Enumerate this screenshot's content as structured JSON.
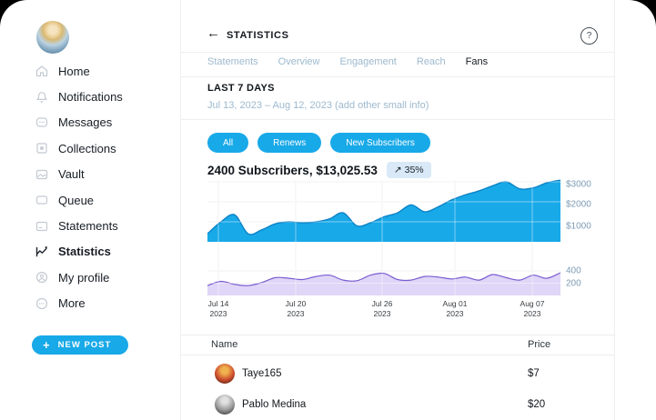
{
  "colors": {
    "accent": "#18a9e8",
    "card-bg": "#ffffff",
    "muted-blue": "#9db9cd",
    "axis-blue": "#7e9cb6",
    "badge-bg": "#d9e9f7",
    "chart-blue-fill": "#18a9e8",
    "chart-blue-stroke": "#0c83c7",
    "chart-purple-stroke": "#7a5cd0",
    "chart-purple-fill": "#e0d6f7"
  },
  "sidebar": {
    "items": [
      {
        "label": "Home",
        "icon": "home",
        "active": false
      },
      {
        "label": "Notifications",
        "icon": "bell",
        "active": false
      },
      {
        "label": "Messages",
        "icon": "message",
        "active": false
      },
      {
        "label": "Collections",
        "icon": "collections",
        "active": false
      },
      {
        "label": "Vault",
        "icon": "vault",
        "active": false
      },
      {
        "label": "Queue",
        "icon": "queue",
        "active": false
      },
      {
        "label": "Statements",
        "icon": "statements",
        "active": false
      },
      {
        "label": "Statistics",
        "icon": "statistics",
        "active": true
      },
      {
        "label": "My profile",
        "icon": "profile",
        "active": false
      },
      {
        "label": "More",
        "icon": "more",
        "active": false
      }
    ],
    "new_post_label": "NEW POST",
    "plus_glyph": "+"
  },
  "header": {
    "title": "STATISTICS",
    "back_glyph": "←",
    "help_glyph": "?"
  },
  "tabs": [
    {
      "label": "Statements",
      "active": false
    },
    {
      "label": "Overview",
      "active": false
    },
    {
      "label": "Engagement",
      "active": false
    },
    {
      "label": "Reach",
      "active": false
    },
    {
      "label": "Fans",
      "active": true
    }
  ],
  "period": {
    "title": "LAST 7 DAYS",
    "subtitle": "Jul 13, 2023 – Aug 12, 2023 (add other small info)"
  },
  "filters": [
    "All",
    "Renews",
    "New Subscribers"
  ],
  "summary": {
    "headline": "2400 Subscribers, $13,025.53",
    "arrow_glyph": "↗",
    "change": "35%"
  },
  "chart_data": {
    "type": "area",
    "x_ticks": [
      {
        "label": "Jul 14",
        "year": "2023"
      },
      {
        "label": "Jul 20",
        "year": "2023"
      },
      {
        "label": "Jul 26",
        "year": "2023"
      },
      {
        "label": "Aug 01",
        "year": "2023"
      },
      {
        "label": "Aug 07",
        "year": "2023"
      }
    ],
    "series": [
      {
        "name": "earnings-usd",
        "axis_labels": [
          "$3000",
          "$2000",
          "$1000"
        ],
        "axis_max": 3000,
        "values": [
          400,
          1000,
          1350,
          400,
          600,
          900,
          1000,
          950,
          1000,
          1150,
          1450,
          800,
          950,
          1250,
          1450,
          1850,
          1500,
          1750,
          2100,
          2350,
          2550,
          2800,
          3000,
          2650,
          2700,
          2950,
          3080
        ]
      },
      {
        "name": "subscribers",
        "axis_labels": [
          "400",
          "200"
        ],
        "axis_max": 400,
        "values": [
          160,
          230,
          180,
          160,
          210,
          290,
          280,
          260,
          310,
          330,
          250,
          240,
          330,
          360,
          260,
          250,
          310,
          300,
          270,
          300,
          250,
          340,
          290,
          250,
          330,
          280,
          370
        ]
      }
    ]
  },
  "table": {
    "columns": [
      "Name",
      "Price"
    ],
    "rows": [
      {
        "name": "Taye165",
        "price": "$7"
      },
      {
        "name": "Pablo Medina",
        "price": "$20"
      }
    ]
  }
}
